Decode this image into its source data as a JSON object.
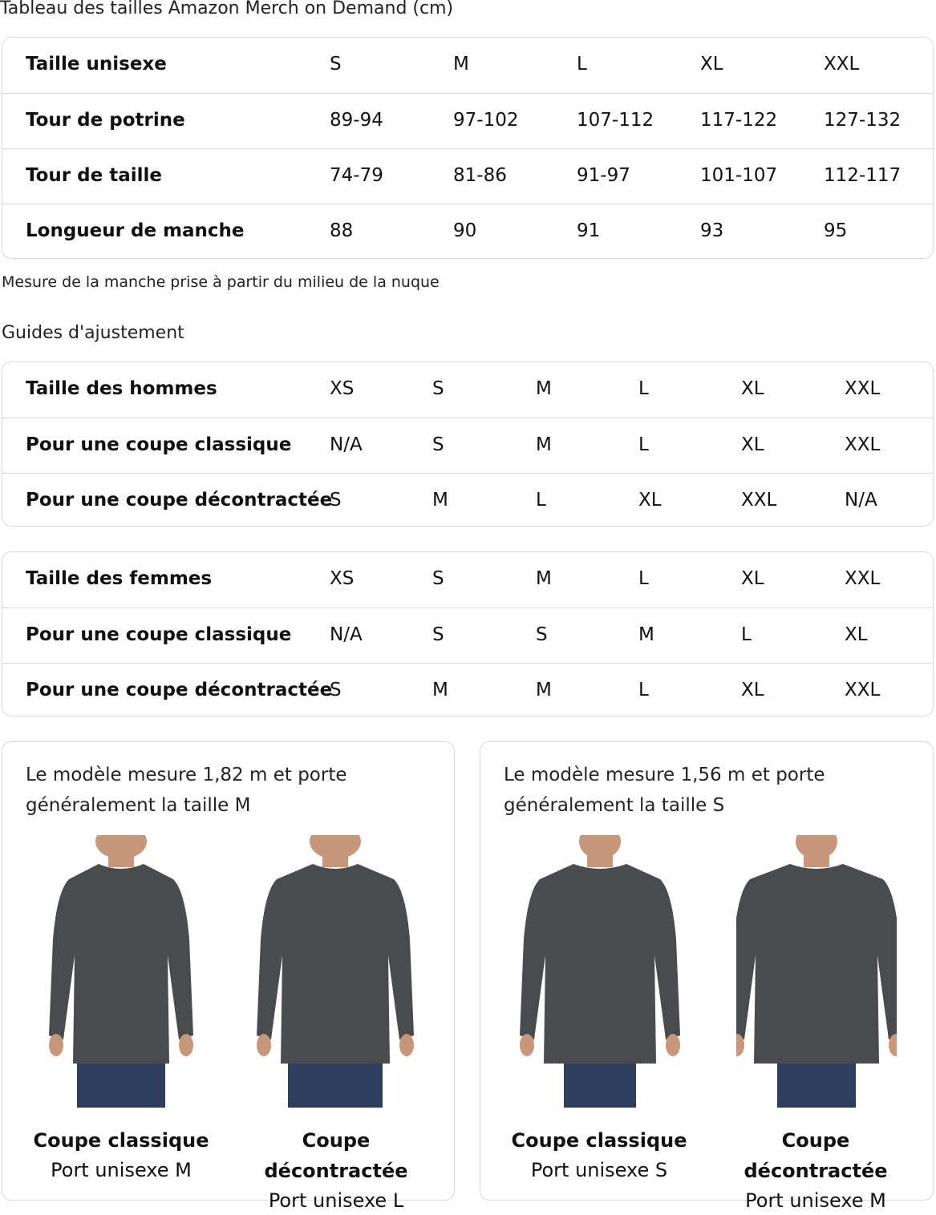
{
  "size_chart": {
    "title": "Tableau des tailles Amazon Merch on Demand (cm)",
    "rows": [
      {
        "label": "Taille unisexe",
        "values": [
          "S",
          "M",
          "L",
          "XL",
          "XXL"
        ]
      },
      {
        "label": "Tour de potrine",
        "values": [
          "89-94",
          "97-102",
          "107-112",
          "117-122",
          "127-132"
        ]
      },
      {
        "label": "Tour de taille",
        "values": [
          "74-79",
          "81-86",
          "91-97",
          "101-107",
          "112-117"
        ]
      },
      {
        "label": "Longueur de manche",
        "values": [
          "88",
          "90",
          "91",
          "93",
          "95"
        ]
      }
    ],
    "note": "Mesure de la manche prise à partir du milieu de la nuque"
  },
  "fit_guides": {
    "title": "Guides d'ajustement",
    "men": [
      {
        "label": "Taille des hommes",
        "values": [
          "XS",
          "S",
          "M",
          "L",
          "XL",
          "XXL"
        ]
      },
      {
        "label": "Pour une coupe classique",
        "values": [
          "N/A",
          "S",
          "M",
          "L",
          "XL",
          "XXL"
        ]
      },
      {
        "label": "Pour une coupe décontractée",
        "values": [
          "S",
          "M",
          "L",
          "XL",
          "XXL",
          "N/A"
        ]
      }
    ],
    "women": [
      {
        "label": "Taille des femmes",
        "values": [
          "XS",
          "S",
          "M",
          "L",
          "XL",
          "XXL"
        ]
      },
      {
        "label": "Pour une coupe classique",
        "values": [
          "N/A",
          "S",
          "S",
          "M",
          "L",
          "XL"
        ]
      },
      {
        "label": "Pour une coupe décontractée",
        "values": [
          "S",
          "M",
          "M",
          "L",
          "XL",
          "XXL"
        ]
      }
    ]
  },
  "models": [
    {
      "text_line1": "Le modèle mesure 1,82 m et porte",
      "text_line2": "généralement la taille M",
      "photos": [
        {
          "fit": "Coupe classique",
          "wear": "Port unisexe M"
        },
        {
          "fit": "Coupe décontractée",
          "wear": "Port unisexe L"
        }
      ]
    },
    {
      "text_line1": "Le modèle mesure 1,56 m et porte",
      "text_line2": "généralement la taille S",
      "photos": [
        {
          "fit": "Coupe classique",
          "wear": "Port unisexe S"
        },
        {
          "fit": "Coupe décontractée",
          "wear": "Port unisexe M"
        }
      ]
    }
  ],
  "colors": {
    "shirt": "#4a4b4e",
    "jeans": "#2d3f5c",
    "border": "#d5d9d9"
  }
}
